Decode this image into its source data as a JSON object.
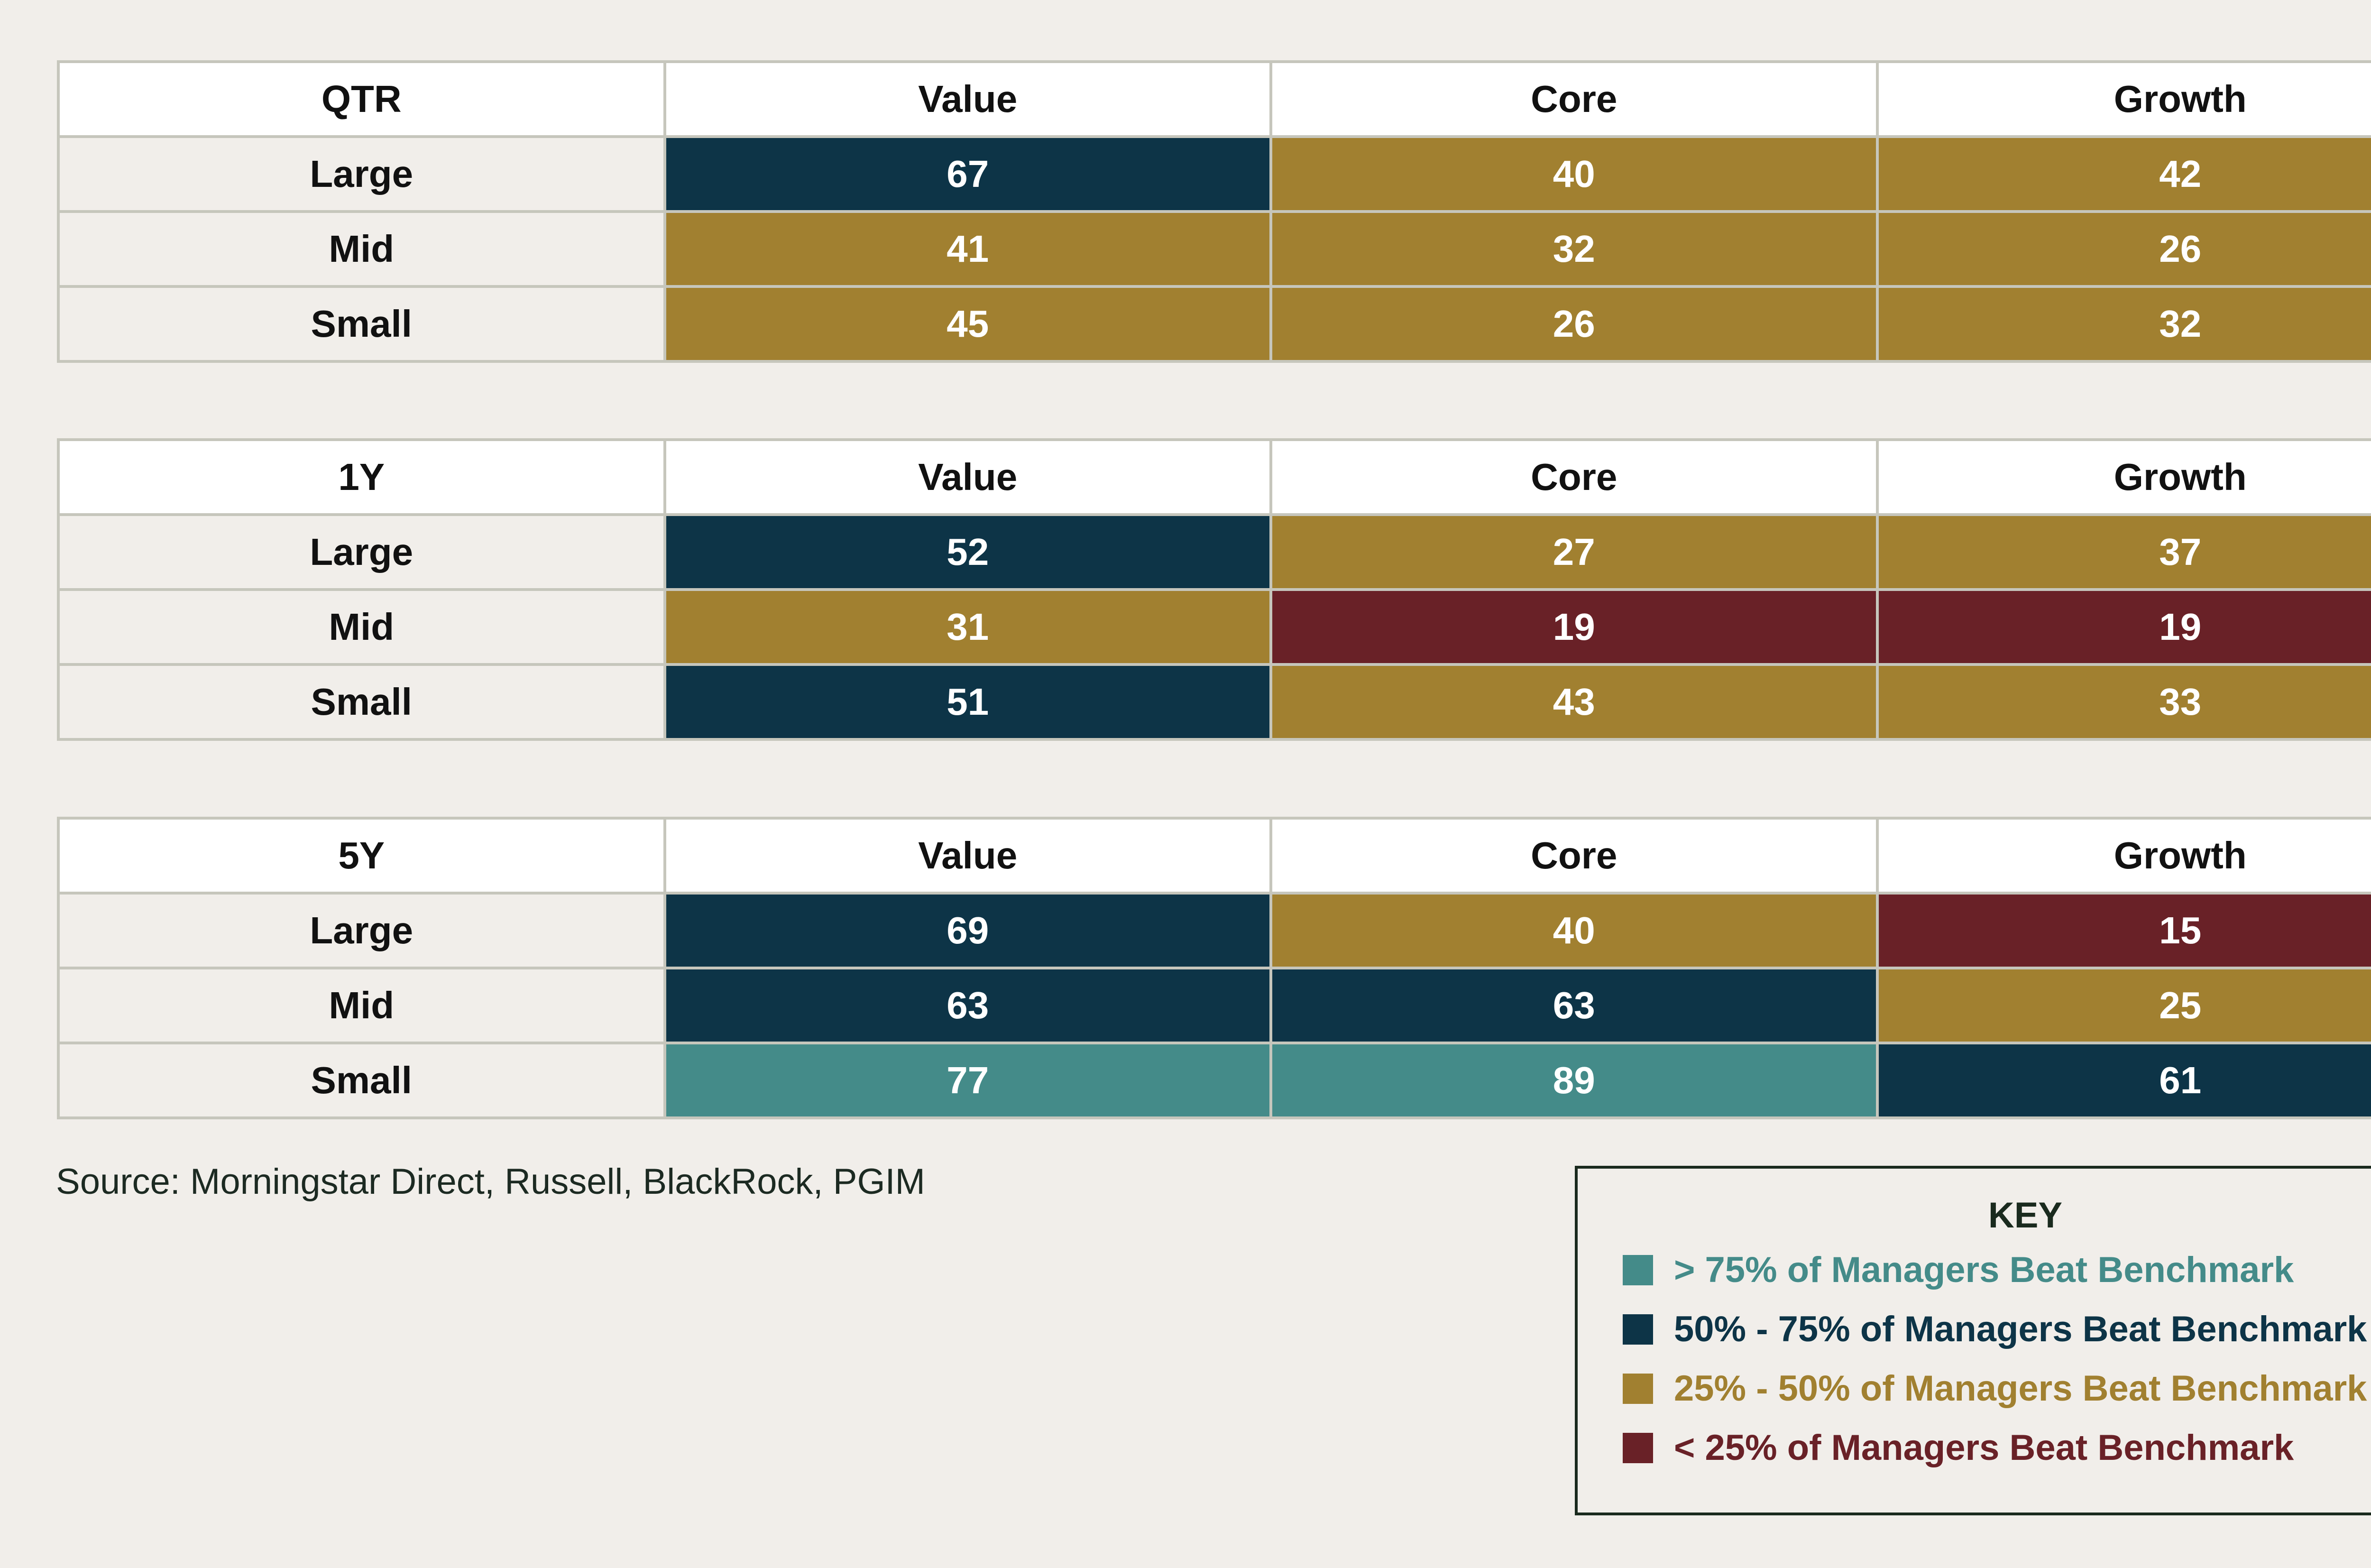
{
  "chart_data": {
    "type": "table",
    "columns": [
      "Value",
      "Core",
      "Growth"
    ],
    "rows": [
      "Large",
      "Mid",
      "Small"
    ],
    "colors": {
      "gt75": "#448b89",
      "50to75": "#0d3447",
      "25to50": "#a18030",
      "lt25": "#692127"
    },
    "tables": [
      {
        "period": "QTR",
        "values": [
          [
            67,
            40,
            42
          ],
          [
            41,
            32,
            26
          ],
          [
            45,
            26,
            32
          ]
        ]
      },
      {
        "period": "1Y",
        "values": [
          [
            52,
            27,
            37
          ],
          [
            31,
            19,
            19
          ],
          [
            51,
            43,
            33
          ]
        ]
      },
      {
        "period": "5Y",
        "values": [
          [
            69,
            40,
            15
          ],
          [
            63,
            63,
            25
          ],
          [
            77,
            89,
            61
          ]
        ]
      }
    ]
  },
  "source": "Source: Morningstar Direct, Russell, BlackRock, PGIM",
  "key": {
    "title": "KEY",
    "items": [
      {
        "label": "> 75% of Managers Beat Benchmark",
        "color": "#448b89"
      },
      {
        "label": "50% - 75% of Managers Beat Benchmark",
        "color": "#0d3447"
      },
      {
        "label": "25% - 50% of Managers Beat Benchmark",
        "color": "#a18030"
      },
      {
        "label": "< 25% of Managers Beat Benchmark",
        "color": "#692127"
      }
    ]
  }
}
